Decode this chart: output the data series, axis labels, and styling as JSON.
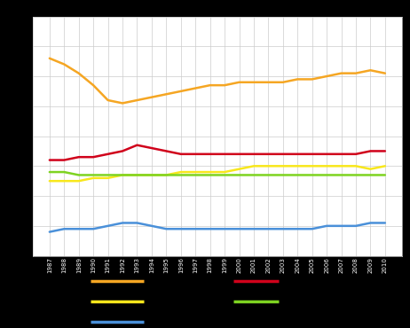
{
  "years": [
    1987,
    1988,
    1989,
    1990,
    1991,
    1992,
    1993,
    1994,
    1995,
    1996,
    1997,
    1998,
    1999,
    2000,
    2001,
    2002,
    2003,
    2004,
    2005,
    2006,
    2007,
    2008,
    2009,
    2010
  ],
  "orange": [
    66,
    64,
    61,
    57,
    52,
    51,
    52,
    53,
    54,
    55,
    56,
    57,
    57,
    58,
    58,
    58,
    58,
    59,
    59,
    60,
    61,
    61,
    62,
    61
  ],
  "red": [
    32,
    32,
    33,
    33,
    34,
    35,
    37,
    36,
    35,
    34,
    34,
    34,
    34,
    34,
    34,
    34,
    34,
    34,
    34,
    34,
    34,
    34,
    35,
    35
  ],
  "yellow": [
    25,
    25,
    25,
    26,
    26,
    27,
    27,
    27,
    27,
    28,
    28,
    28,
    28,
    29,
    30,
    30,
    30,
    30,
    30,
    30,
    30,
    30,
    29,
    30
  ],
  "green": [
    28,
    28,
    27,
    27,
    27,
    27,
    27,
    27,
    27,
    27,
    27,
    27,
    27,
    27,
    27,
    27,
    27,
    27,
    27,
    27,
    27,
    27,
    27,
    27
  ],
  "blue": [
    8,
    9,
    9,
    9,
    10,
    11,
    11,
    10,
    9,
    9,
    9,
    9,
    9,
    9,
    9,
    9,
    9,
    9,
    9,
    10,
    10,
    10,
    11,
    11
  ],
  "colors": {
    "orange": "#F5A623",
    "red": "#D0021B",
    "yellow": "#F8E71C",
    "green": "#7ED321",
    "blue": "#4A90D9"
  },
  "ylim": [
    0,
    80
  ],
  "yticks": [
    0,
    10,
    20,
    30,
    40,
    50,
    60,
    70,
    80
  ],
  "background": "#000000",
  "plot_background": "#FFFFFF",
  "grid_color": "#CCCCCC",
  "line_width": 1.8
}
